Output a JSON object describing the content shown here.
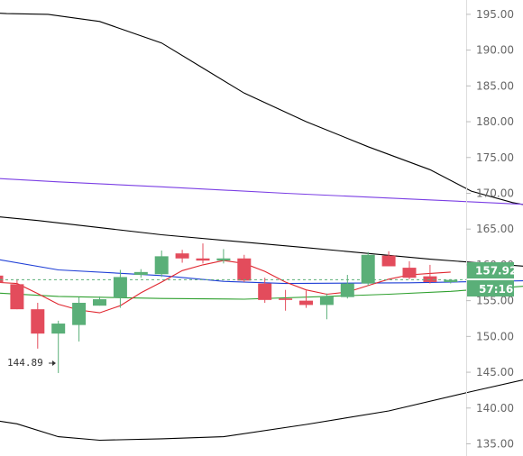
{
  "chart_data": {
    "type": "candlestick",
    "ylim": [
      133.3,
      197.0
    ],
    "y_axis_position": "right",
    "grid": false,
    "y_ticks": [
      195,
      190,
      185,
      180,
      175,
      170,
      165,
      160,
      155,
      150,
      145,
      140,
      135
    ],
    "y_tick_labels": [
      "195.00",
      "190.00",
      "185.00",
      "180.00",
      "175.00",
      "170.00",
      "165.00",
      "160.00",
      "155.00",
      "150.00",
      "145.00",
      "140.00",
      "135.00"
    ],
    "candles": [
      {
        "i": 0,
        "open": 158.5,
        "high": 159.0,
        "low": 157.0,
        "close": 157.5
      },
      {
        "i": 1,
        "open": 157.3,
        "high": 158.0,
        "low": 153.8,
        "close": 153.8
      },
      {
        "i": 2,
        "open": 153.8,
        "high": 154.7,
        "low": 148.3,
        "close": 150.4
      },
      {
        "i": 3,
        "open": 150.4,
        "high": 152.2,
        "low": 144.89,
        "close": 151.8
      },
      {
        "i": 4,
        "open": 151.6,
        "high": 155.5,
        "low": 149.3,
        "close": 154.7
      },
      {
        "i": 5,
        "open": 154.3,
        "high": 155.6,
        "low": 154.3,
        "close": 155.2
      },
      {
        "i": 6,
        "open": 155.4,
        "high": 159.3,
        "low": 154.0,
        "close": 158.3
      },
      {
        "i": 7,
        "open": 158.6,
        "high": 159.4,
        "low": 158.2,
        "close": 159.0
      },
      {
        "i": 8,
        "open": 158.7,
        "high": 162.0,
        "low": 158.3,
        "close": 161.2
      },
      {
        "i": 9,
        "open": 161.6,
        "high": 162.1,
        "low": 160.3,
        "close": 160.9
      },
      {
        "i": 10,
        "open": 160.9,
        "high": 163.0,
        "low": 160.2,
        "close": 160.6
      },
      {
        "i": 11,
        "open": 160.6,
        "high": 162.2,
        "low": 160.2,
        "close": 160.9
      },
      {
        "i": 12,
        "open": 160.9,
        "high": 161.4,
        "low": 157.6,
        "close": 157.8
      },
      {
        "i": 13,
        "open": 157.4,
        "high": 158.2,
        "low": 154.7,
        "close": 155.1
      },
      {
        "i": 14,
        "open": 155.3,
        "high": 156.5,
        "low": 153.6,
        "close": 155.1
      },
      {
        "i": 15,
        "open": 155.0,
        "high": 156.4,
        "low": 154.0,
        "close": 154.4
      },
      {
        "i": 16,
        "open": 154.4,
        "high": 156.0,
        "low": 152.4,
        "close": 155.6
      },
      {
        "i": 17,
        "open": 155.5,
        "high": 158.6,
        "low": 155.3,
        "close": 157.4
      },
      {
        "i": 18,
        "open": 157.4,
        "high": 161.8,
        "low": 157.1,
        "close": 161.4
      },
      {
        "i": 19,
        "open": 161.3,
        "high": 161.9,
        "low": 159.8,
        "close": 159.8
      },
      {
        "i": 20,
        "open": 159.6,
        "high": 160.5,
        "low": 158.0,
        "close": 158.2
      },
      {
        "i": 21,
        "open": 158.4,
        "high": 160.0,
        "low": 157.4,
        "close": 157.6
      },
      {
        "i": 22,
        "open": 157.6,
        "high": 158.0,
        "low": 157.4,
        "close": 157.9
      }
    ],
    "series": [
      {
        "color": "#000000",
        "points": [
          [
            -2,
            195.5
          ],
          [
            0.5,
            195.1
          ],
          [
            2.5,
            195.0
          ],
          [
            5,
            194.0
          ],
          [
            8,
            191.0
          ],
          [
            10,
            187.5
          ],
          [
            12,
            184.0
          ],
          [
            15,
            180.0
          ],
          [
            18,
            176.5
          ],
          [
            21,
            173.3
          ],
          [
            23,
            170.3
          ],
          [
            25,
            168.7
          ],
          [
            27,
            167.6
          ],
          [
            29,
            166.3
          ],
          [
            31,
            165.9
          ],
          [
            33,
            165.8
          ],
          [
            35,
            165.1
          ],
          [
            38,
            165.2
          ],
          [
            40,
            165.1
          ]
        ]
      },
      {
        "color": "#000000",
        "points": [
          [
            -2,
            167.3
          ],
          [
            2,
            166.2
          ],
          [
            8,
            164.2
          ],
          [
            15,
            162.4
          ],
          [
            21,
            160.8
          ],
          [
            27,
            159.5
          ],
          [
            33,
            158.3
          ],
          [
            37,
            157.7
          ],
          [
            40,
            157.8
          ]
        ]
      },
      {
        "color": "#000000",
        "points": [
          [
            -2,
            139.1
          ],
          [
            1,
            137.8
          ],
          [
            3,
            136.0
          ],
          [
            5,
            135.5
          ],
          [
            8,
            135.7
          ],
          [
            11,
            136.0
          ],
          [
            15,
            137.7
          ],
          [
            19,
            139.6
          ],
          [
            23,
            142.3
          ],
          [
            27,
            144.9
          ],
          [
            31,
            147.3
          ],
          [
            35,
            148.5
          ],
          [
            38,
            148.8
          ],
          [
            40,
            149.2
          ]
        ]
      },
      {
        "color": "#7b3fe4",
        "points": [
          [
            -2,
            172.4
          ],
          [
            3,
            171.6
          ],
          [
            8,
            170.9
          ],
          [
            14,
            170.0
          ],
          [
            20,
            169.2
          ],
          [
            26,
            168.4
          ],
          [
            32,
            167.5
          ],
          [
            38,
            166.3
          ],
          [
            43,
            165.3
          ]
        ]
      },
      {
        "color": "#1f3fd6",
        "points": [
          [
            -2,
            161.8
          ],
          [
            3,
            159.3
          ],
          [
            8,
            158.5
          ],
          [
            11,
            157.7
          ],
          [
            14,
            157.4
          ],
          [
            20,
            157.5
          ],
          [
            26,
            157.8
          ],
          [
            32,
            157.6
          ],
          [
            38,
            157.3
          ],
          [
            43,
            157.4
          ]
        ]
      },
      {
        "color": "#2fa02f",
        "points": [
          [
            -2,
            156.4
          ],
          [
            3,
            155.6
          ],
          [
            8,
            155.3
          ],
          [
            12,
            155.2
          ],
          [
            16,
            155.6
          ],
          [
            19,
            155.9
          ],
          [
            22,
            156.3
          ],
          [
            26,
            157.1
          ],
          [
            30,
            158.3
          ],
          [
            34,
            158.6
          ],
          [
            38,
            158.4
          ],
          [
            42,
            158.2
          ],
          [
            46,
            158.0
          ]
        ]
      },
      {
        "color": "#e0262f",
        "points": [
          [
            -2,
            157.9
          ],
          [
            1,
            157.4
          ],
          [
            2,
            156.0
          ],
          [
            3,
            154.5
          ],
          [
            4,
            153.7
          ],
          [
            5,
            153.3
          ],
          [
            6,
            154.3
          ],
          [
            7,
            156.1
          ],
          [
            8,
            157.6
          ],
          [
            9,
            159.2
          ],
          [
            10,
            160.0
          ],
          [
            11,
            160.6
          ],
          [
            12,
            160.2
          ],
          [
            13,
            159.1
          ],
          [
            14,
            157.6
          ],
          [
            15,
            156.5
          ],
          [
            16,
            155.9
          ],
          [
            17,
            156.2
          ],
          [
            18,
            157.1
          ],
          [
            19,
            158.0
          ],
          [
            20,
            158.6
          ],
          [
            21,
            158.8
          ],
          [
            22,
            159.0
          ]
        ]
      }
    ],
    "last_price": 157.92,
    "last_price_label": "157.92",
    "countdown_label": "57:16",
    "low_annotation": {
      "price": 144.89,
      "label": "144.89"
    },
    "colors": {
      "up": "#5aaf78",
      "down": "#e34c5c",
      "last_price_line": "#5aaf78",
      "badge": "#5aaf78"
    }
  }
}
